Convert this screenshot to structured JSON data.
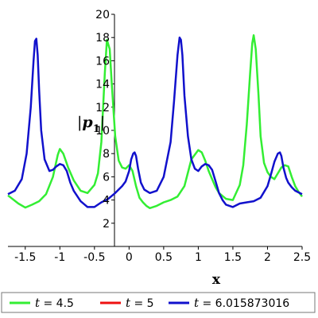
{
  "chart_data": {
    "type": "line",
    "title": "",
    "xlabel": "x",
    "ylabel": {
      "prefix": "|",
      "symbol": "p",
      "subscript": "1",
      "suffix": "|"
    },
    "xlim": [
      -1.75,
      2.5
    ],
    "ylim": [
      0,
      20
    ],
    "xticks": [
      -1.5,
      -1,
      -0.5,
      0,
      0.5,
      1,
      1.5,
      2,
      2.5
    ],
    "xtick_labels": [
      "-1.5",
      "-1",
      "-0.5",
      "0",
      "0.5",
      "1",
      "1.5",
      "2",
      "2.5"
    ],
    "yticks": [
      2,
      4,
      6,
      8,
      10,
      12,
      14,
      16,
      18,
      20
    ],
    "ytick_labels": [
      "2",
      "4",
      "6",
      "8",
      "10",
      "12",
      "14",
      "16",
      "18",
      "20"
    ],
    "grid": false,
    "legend_position": "bottom",
    "series": [
      {
        "name": "t = 4.5",
        "label_var": "t",
        "label_value": "= 4.5",
        "color": "#33ee33",
        "x": [
          -1.75,
          -1.6,
          -1.5,
          -1.4,
          -1.3,
          -1.2,
          -1.1,
          -1.03,
          -1.0,
          -0.95,
          -0.88,
          -0.8,
          -0.7,
          -0.6,
          -0.5,
          -0.45,
          -0.4,
          -0.35,
          -0.32,
          -0.28,
          -0.25,
          -0.2,
          -0.15,
          -0.1,
          -0.05,
          0.0,
          0.05,
          0.1,
          0.15,
          0.2,
          0.25,
          0.3,
          0.4,
          0.5,
          0.6,
          0.7,
          0.8,
          0.9,
          1.0,
          1.05,
          1.1,
          1.15,
          1.2,
          1.25,
          1.3,
          1.4,
          1.5,
          1.6,
          1.65,
          1.7,
          1.75,
          1.78,
          1.8,
          1.83,
          1.87,
          1.9,
          1.95,
          2.0,
          2.05,
          2.1,
          2.15,
          2.2,
          2.25,
          2.3,
          2.35,
          2.4,
          2.45,
          2.5
        ],
        "y": [
          4.4,
          3.7,
          3.35,
          3.6,
          3.9,
          4.5,
          6.0,
          7.9,
          8.4,
          8.0,
          6.8,
          5.7,
          4.8,
          4.6,
          5.3,
          6.3,
          9.0,
          15.0,
          17.8,
          17.0,
          14.0,
          9.5,
          7.4,
          6.8,
          6.7,
          7.0,
          6.5,
          5.2,
          4.2,
          3.8,
          3.5,
          3.3,
          3.5,
          3.8,
          4.0,
          4.3,
          5.2,
          7.5,
          8.3,
          8.1,
          7.4,
          6.5,
          5.8,
          5.1,
          4.6,
          4.1,
          4.0,
          5.3,
          7.0,
          10.5,
          15.0,
          17.5,
          18.2,
          17.0,
          13.0,
          9.5,
          7.2,
          6.4,
          6.0,
          5.8,
          6.3,
          6.8,
          7.0,
          6.9,
          6.0,
          5.2,
          4.7,
          4.3
        ]
      },
      {
        "name": "t = 5",
        "label_var": "t",
        "label_value": "= 5",
        "color": "#ee1111",
        "x": [],
        "y": []
      },
      {
        "name": "t = 6.015873016",
        "label_var": "t",
        "label_value": "= 6.015873016",
        "color": "#1111cc",
        "x": [
          -1.75,
          -1.65,
          -1.55,
          -1.48,
          -1.42,
          -1.38,
          -1.36,
          -1.34,
          -1.32,
          -1.3,
          -1.27,
          -1.22,
          -1.15,
          -1.1,
          -1.05,
          -1.0,
          -0.95,
          -0.9,
          -0.85,
          -0.8,
          -0.7,
          -0.6,
          -0.5,
          -0.4,
          -0.3,
          -0.2,
          -0.1,
          -0.05,
          0.0,
          0.03,
          0.06,
          0.08,
          0.1,
          0.13,
          0.17,
          0.22,
          0.3,
          0.4,
          0.5,
          0.6,
          0.65,
          0.7,
          0.73,
          0.75,
          0.77,
          0.8,
          0.85,
          0.9,
          0.95,
          1.0,
          1.05,
          1.1,
          1.15,
          1.2,
          1.25,
          1.3,
          1.35,
          1.4,
          1.5,
          1.6,
          1.7,
          1.8,
          1.9,
          2.0,
          2.05,
          2.1,
          2.15,
          2.18,
          2.2,
          2.23,
          2.27,
          2.3,
          2.35,
          2.4,
          2.5
        ],
        "y": [
          4.5,
          4.8,
          5.8,
          8.0,
          12.0,
          16.0,
          17.7,
          17.9,
          16.5,
          13.5,
          10.0,
          7.5,
          6.5,
          6.6,
          6.9,
          7.1,
          7.0,
          6.5,
          5.5,
          4.8,
          3.9,
          3.4,
          3.4,
          3.8,
          4.1,
          4.6,
          5.2,
          5.6,
          6.5,
          7.5,
          8.0,
          8.1,
          7.8,
          6.7,
          5.5,
          4.9,
          4.6,
          4.8,
          6.0,
          9.0,
          12.5,
          16.5,
          18.0,
          17.8,
          16.5,
          13.0,
          9.5,
          7.5,
          6.7,
          6.5,
          6.9,
          7.1,
          7.0,
          6.6,
          5.6,
          4.6,
          4.0,
          3.6,
          3.4,
          3.7,
          3.8,
          3.9,
          4.2,
          5.2,
          6.2,
          7.3,
          8.0,
          8.1,
          7.8,
          6.8,
          5.9,
          5.5,
          5.1,
          4.8,
          4.5
        ]
      }
    ]
  }
}
